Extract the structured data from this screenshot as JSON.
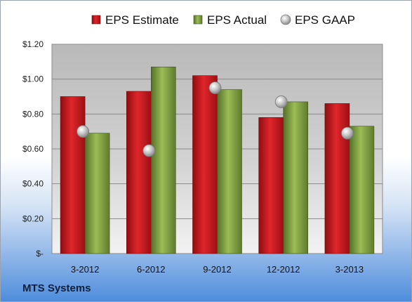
{
  "chart_data": {
    "type": "bar",
    "categories": [
      "3-2012",
      "6-2012",
      "9-2012",
      "12-2012",
      "3-2013"
    ],
    "series": [
      {
        "name": "EPS Estimate",
        "kind": "bar",
        "color": "#c0161b",
        "values": [
          0.9,
          0.93,
          1.02,
          0.78,
          0.86
        ]
      },
      {
        "name": "EPS Actual",
        "kind": "bar",
        "color": "#7a9a3a",
        "values": [
          0.69,
          1.07,
          0.94,
          0.87,
          0.73
        ]
      },
      {
        "name": "EPS GAAP",
        "kind": "marker",
        "color": "#a8a8a8",
        "values": [
          0.7,
          0.59,
          0.95,
          0.87,
          0.69
        ]
      }
    ],
    "yticks": [
      {
        "value": 0,
        "label": "$-"
      },
      {
        "value": 0.2,
        "label": "$0.20"
      },
      {
        "value": 0.4,
        "label": "$0.40"
      },
      {
        "value": 0.6,
        "label": "$0.60"
      },
      {
        "value": 0.8,
        "label": "$0.80"
      },
      {
        "value": 1.0,
        "label": "$1.00"
      },
      {
        "value": 1.2,
        "label": "$1.20"
      }
    ],
    "ylim": [
      0,
      1.2
    ],
    "grid": true,
    "legend_position": "top"
  },
  "footer": {
    "company": "MTS Systems"
  }
}
